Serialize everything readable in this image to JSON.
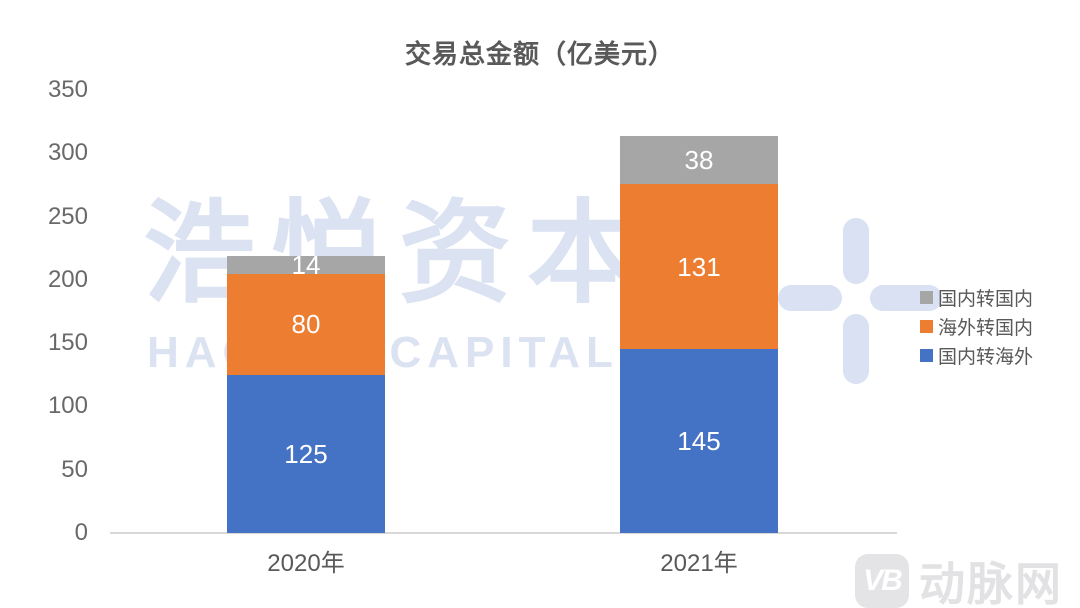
{
  "title": {
    "text": "交易总金额（亿美元）"
  },
  "chart_data": {
    "type": "bar",
    "stacked": true,
    "title": "交易总金额（亿美元）",
    "categories": [
      "2020年",
      "2021年"
    ],
    "series": [
      {
        "name": "国内转海外",
        "color": "#4472C4",
        "values": [
          125,
          145
        ]
      },
      {
        "name": "海外转国内",
        "color": "#ED7D31",
        "values": [
          80,
          131
        ]
      },
      {
        "name": "国内转国内",
        "color": "#A6A6A6",
        "values": [
          14,
          38
        ]
      }
    ],
    "totals": [
      219,
      314
    ],
    "ylim": [
      0,
      350
    ],
    "ytick_interval": 50,
    "grid": false,
    "legend_position": "right",
    "legend_order_top_to_bottom": [
      "国内转国内",
      "海外转国内",
      "国内转海外"
    ],
    "data_label_color": "#FFFFFF",
    "axis_line_color": "#D9D9D9"
  },
  "watermark": {
    "cjk_text": "浩悦资本",
    "latin_text": "HAOYUE CAPITAL",
    "color": "#DBE2F1"
  },
  "footer_logo": {
    "badge_text": "VB",
    "site_name": "动脉网",
    "color": "#E3E3E5"
  }
}
